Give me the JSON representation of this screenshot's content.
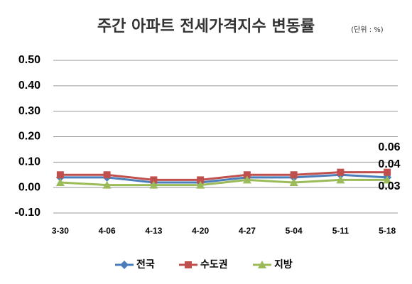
{
  "chart_data": {
    "type": "line",
    "title": "주간 아파트 전세가격지수 변동률",
    "subtitle": "(단위 : %)",
    "categories": [
      "3-30",
      "4-06",
      "4-13",
      "4-20",
      "4-27",
      "5-04",
      "5-11",
      "5-18"
    ],
    "series": [
      {
        "name": "전국",
        "color": "#4a7ebb",
        "marker": "diamond",
        "values": [
          0.04,
          0.04,
          0.02,
          0.02,
          0.04,
          0.04,
          0.05,
          0.04
        ]
      },
      {
        "name": "수도권",
        "color": "#c0504d",
        "marker": "square",
        "values": [
          0.05,
          0.05,
          0.03,
          0.03,
          0.05,
          0.05,
          0.06,
          0.06
        ]
      },
      {
        "name": "지방",
        "color": "#9bbb59",
        "marker": "triangle",
        "values": [
          0.02,
          0.01,
          0.01,
          0.01,
          0.03,
          0.02,
          0.03,
          0.03
        ]
      }
    ],
    "ylim": [
      -0.1,
      0.5
    ],
    "yticks": [
      {
        "value": -0.1,
        "label": "-0.10"
      },
      {
        "value": 0,
        "label": "0.00"
      },
      {
        "value": 0.1,
        "label": "0.10"
      },
      {
        "value": 0.2,
        "label": "0.20"
      },
      {
        "value": 0.3,
        "label": "0.30"
      },
      {
        "value": 0.4,
        "label": "0.40"
      },
      {
        "value": 0.5,
        "label": "0.50"
      }
    ],
    "grid": true,
    "legend": "bottom"
  }
}
